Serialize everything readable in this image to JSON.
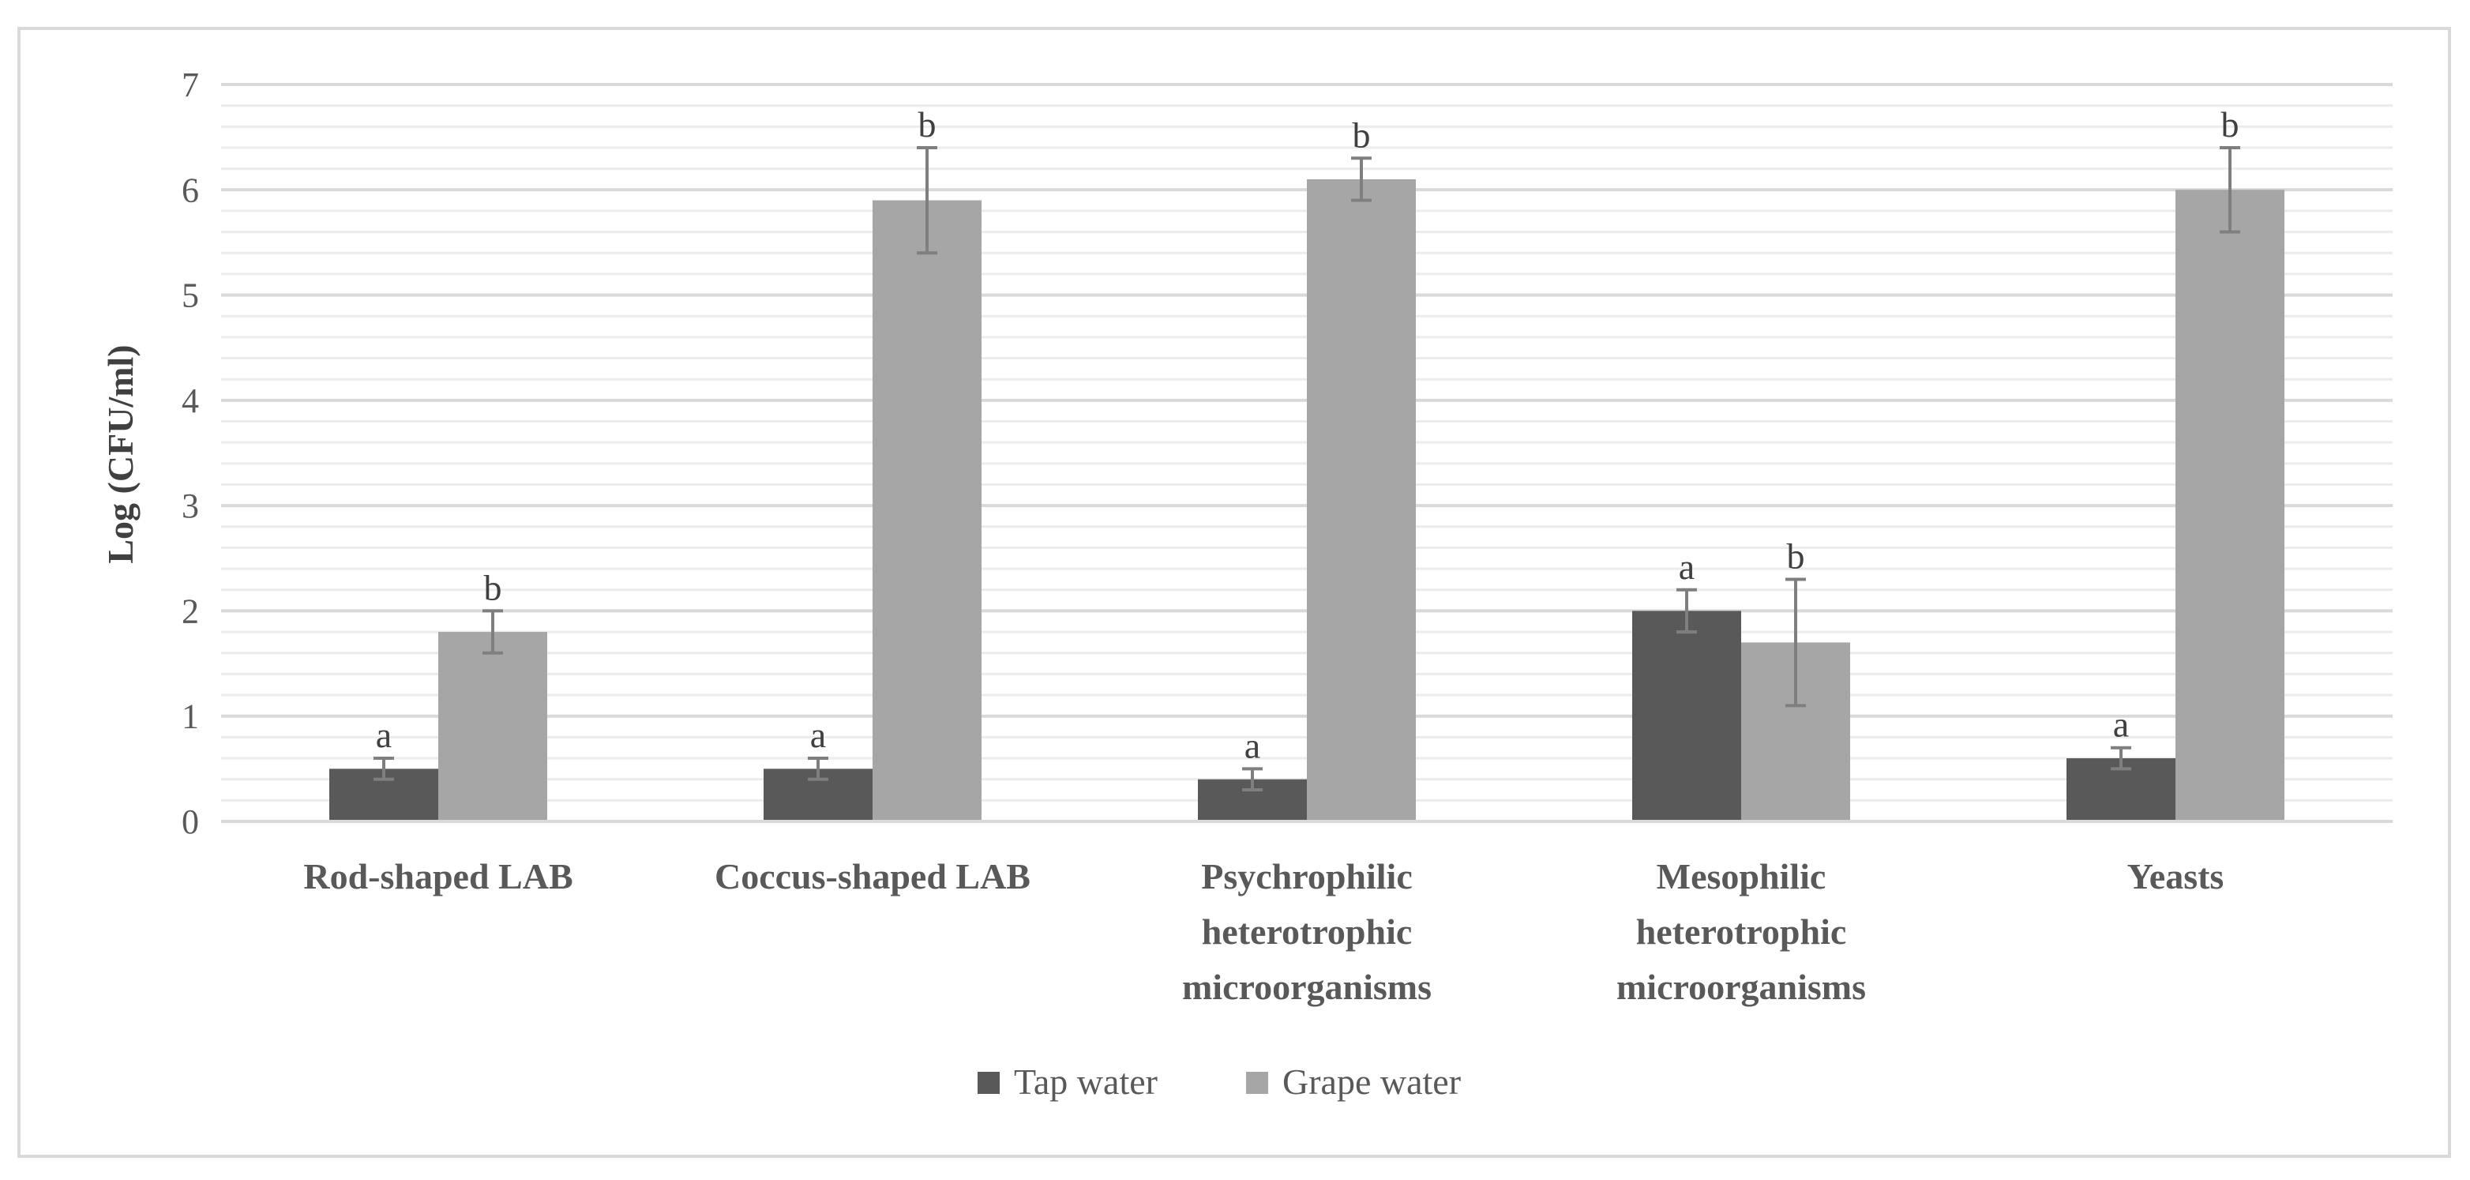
{
  "chart_data": {
    "type": "bar",
    "title": "",
    "xlabel": "",
    "ylabel": "Log (CFU/ml)",
    "ylim": [
      0,
      7
    ],
    "yticks": [
      "0",
      "1",
      "2",
      "3",
      "4",
      "5",
      "6",
      "7"
    ],
    "grid": true,
    "legend_position": "bottom",
    "categories": [
      [
        "Rod-shaped LAB"
      ],
      [
        "Coccus-shaped LAB"
      ],
      [
        "Psychrophilic",
        "heterotrophic",
        "microorganisms"
      ],
      [
        "Mesophilic",
        "heterotrophic",
        "microorganisms"
      ],
      [
        "Yeasts"
      ]
    ],
    "series": [
      {
        "name": "Tap water",
        "color": "#595959",
        "values": [
          0.5,
          0.5,
          0.4,
          2.0,
          0.6
        ],
        "errors": [
          0.1,
          0.1,
          0.1,
          0.2,
          0.1
        ],
        "labels": [
          "a",
          "a",
          "a",
          "a",
          "a"
        ]
      },
      {
        "name": "Grape water",
        "color": "#a6a6a6",
        "values": [
          1.8,
          5.9,
          6.1,
          1.7,
          6.0
        ],
        "errors": [
          0.2,
          0.5,
          0.2,
          0.6,
          0.4
        ],
        "labels": [
          "b",
          "b",
          "b",
          "b",
          "b"
        ]
      }
    ]
  }
}
